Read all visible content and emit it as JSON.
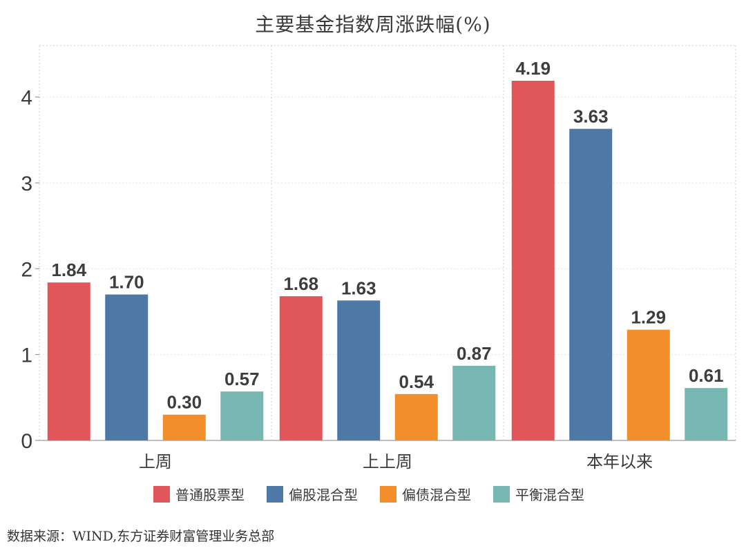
{
  "chart_data": {
    "type": "bar",
    "title": "主要基金指数周涨跌幅(%)",
    "categories": [
      "上周",
      "上上周",
      "本年以来"
    ],
    "series": [
      {
        "name": "普通股票型",
        "color": "#e0565b",
        "values": [
          1.84,
          1.68,
          4.19
        ]
      },
      {
        "name": "偏股混合型",
        "color": "#4e79a7",
        "values": [
          1.7,
          1.63,
          3.63
        ]
      },
      {
        "name": "偏债混合型",
        "color": "#f28e2b",
        "values": [
          0.3,
          0.54,
          1.29
        ]
      },
      {
        "name": "平衡混合型",
        "color": "#76b7b2",
        "values": [
          0.57,
          0.87,
          0.61
        ]
      }
    ],
    "ylim": [
      0,
      4.6
    ],
    "yticks": [
      0,
      1,
      2,
      3,
      4
    ],
    "value_labels": [
      [
        "1.84",
        "1.68",
        "4.19"
      ],
      [
        "1.70",
        "1.63",
        "3.63"
      ],
      [
        "0.30",
        "0.54",
        "1.29"
      ],
      [
        "0.57",
        "0.87",
        "0.61"
      ]
    ],
    "xlabel": "",
    "ylabel": "",
    "grid": true,
    "legend_position": "bottom"
  },
  "footer": {
    "source": "数据来源：WIND,东方证券财富管理业务总部"
  }
}
